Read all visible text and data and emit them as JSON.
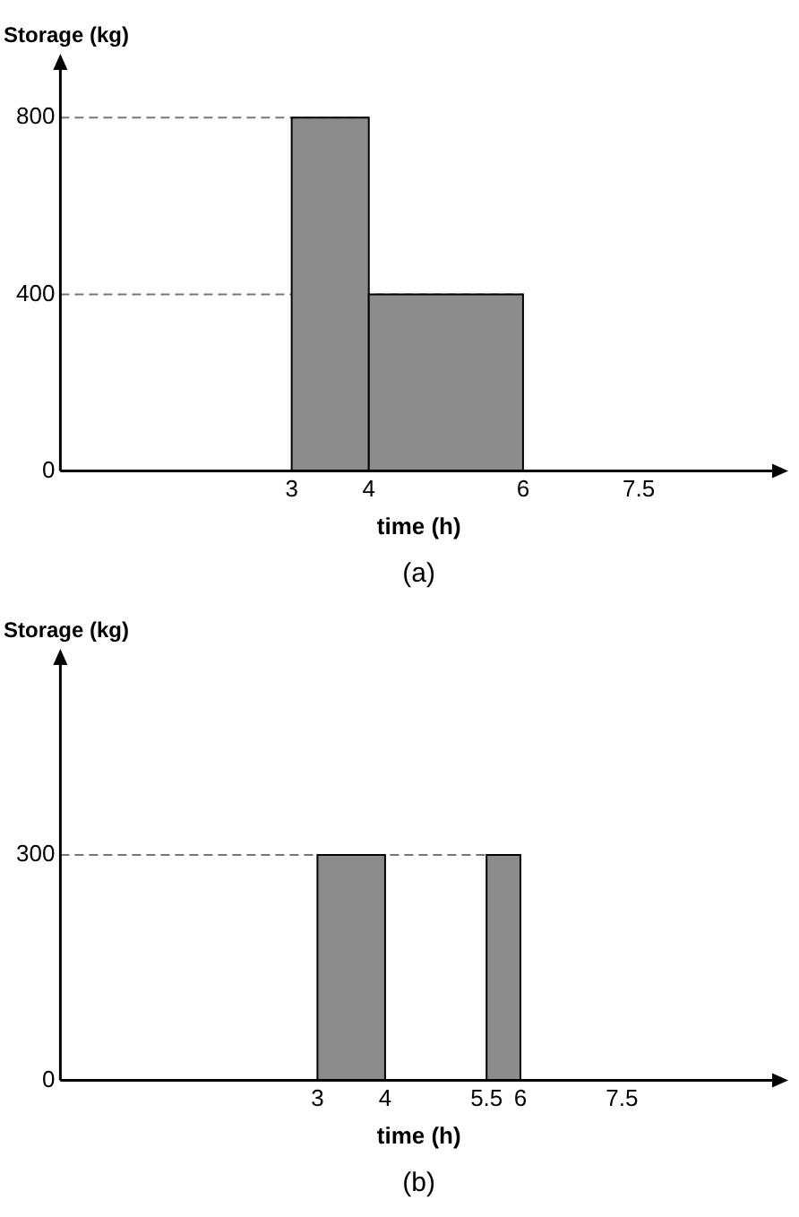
{
  "chart_data": [
    {
      "type": "histogram",
      "ylabel": "Storage (kg)",
      "xlabel": "time (h)",
      "bins": [
        3,
        4,
        6
      ],
      "values": [
        800,
        400
      ],
      "color": "#8c8c8c",
      "xlim": [
        0,
        9.3
      ],
      "xticks": [
        3,
        4,
        6,
        7.5
      ],
      "ylim": [
        0,
        920
      ],
      "yticks": [
        0,
        400,
        800
      ],
      "grid": false,
      "ref_lines": [
        {
          "axis": "y",
          "value": 800,
          "line_style": "dashed",
          "color": "#777777"
        },
        {
          "axis": "y",
          "value": 400,
          "line_style": "dashed",
          "color": "#777777"
        }
      ],
      "annotations": [
        "(a)"
      ]
    },
    {
      "type": "histogram",
      "ylabel": "Storage (kg)",
      "xlabel": "time (h)",
      "bins": [
        3,
        4,
        5.5,
        6
      ],
      "values": [
        300,
        0,
        300
      ],
      "color": "#8c8c8c",
      "xlim": [
        -0.8,
        9.8
      ],
      "xticks": [
        3,
        4,
        5.5,
        6,
        7.5
      ],
      "ylim": [
        0,
        560
      ],
      "yticks": [
        0,
        300
      ],
      "grid": false,
      "ref_lines": [
        {
          "axis": "y",
          "value": 300,
          "line_style": "dashed",
          "color": "#777777"
        }
      ],
      "annotations": [
        "(b)"
      ]
    }
  ]
}
